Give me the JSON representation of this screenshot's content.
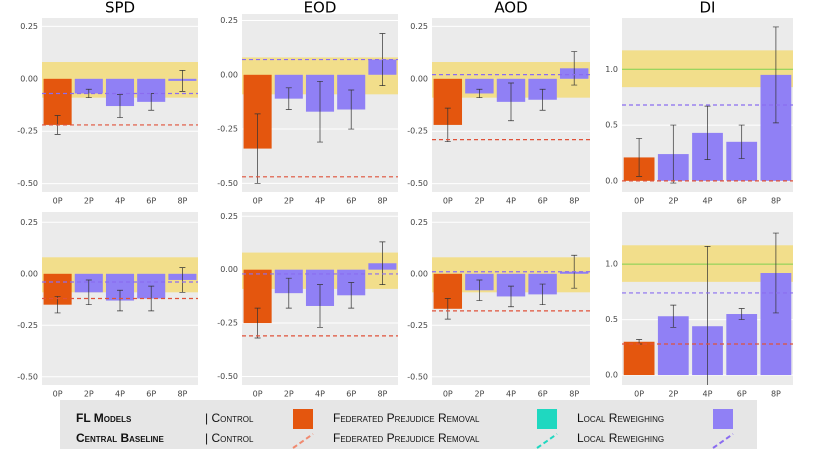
{
  "chart_data": [
    {
      "type": "bar",
      "title": "SPD",
      "categories": [
        "0P",
        "2P",
        "4P",
        "6P",
        "8P"
      ],
      "values": [
        -0.22,
        -0.07,
        -0.13,
        -0.11,
        -0.01
      ],
      "errors": [
        0.045,
        0.02,
        0.055,
        0.04,
        0.05
      ],
      "bar_colors": [
        "#e4560e",
        "#9080f5",
        "#9080f5",
        "#9080f5",
        "#9080f5"
      ],
      "ylim": [
        -0.54,
        0.29
      ],
      "yticks": [
        {
          "value": 0.25,
          "label": "0.25"
        },
        {
          "value": 0,
          "label": "0.00"
        },
        {
          "value": -0.25,
          "label": "-0.25"
        },
        {
          "value": -0.5,
          "label": "-0.50"
        }
      ],
      "band": [
        -0.09,
        0.08
      ],
      "band_color": "#f3dc7a",
      "baselines": [
        {
          "value": -0.22,
          "color": "#e0523a"
        },
        {
          "value": -0.07,
          "color": "#8a6cf0"
        }
      ]
    },
    {
      "type": "bar",
      "title": "EOD",
      "categories": [
        "0P",
        "2P",
        "4P",
        "6P",
        "8P"
      ],
      "values": [
        -0.34,
        -0.11,
        -0.17,
        -0.16,
        0.07
      ],
      "errors": [
        0.16,
        0.05,
        0.14,
        0.09,
        0.12
      ],
      "bar_colors": [
        "#e4560e",
        "#9080f5",
        "#9080f5",
        "#9080f5",
        "#9080f5"
      ],
      "ylim": [
        -0.54,
        0.28
      ],
      "yticks": [
        {
          "value": 0.25,
          "label": "0.25"
        },
        {
          "value": 0,
          "label": "0.00"
        },
        {
          "value": -0.25,
          "label": "-0.25"
        },
        {
          "value": -0.5,
          "label": "-0.50"
        }
      ],
      "band": [
        -0.09,
        0.08
      ],
      "band_color": "#f3dc7a",
      "baselines": [
        {
          "value": -0.47,
          "color": "#e0523a"
        },
        {
          "value": 0.07,
          "color": "#8a6cf0"
        }
      ]
    },
    {
      "type": "bar",
      "title": "AOD",
      "categories": [
        "0P",
        "2P",
        "4P",
        "6P",
        "8P"
      ],
      "values": [
        -0.22,
        -0.07,
        -0.11,
        -0.1,
        0.05
      ],
      "errors": [
        0.08,
        0.02,
        0.09,
        0.05,
        0.08
      ],
      "bar_colors": [
        "#e4560e",
        "#9080f5",
        "#9080f5",
        "#9080f5",
        "#9080f5"
      ],
      "ylim": [
        -0.54,
        0.29
      ],
      "yticks": [
        {
          "value": 0.25,
          "label": "0.25"
        },
        {
          "value": 0,
          "label": "0.00"
        },
        {
          "value": -0.25,
          "label": "-0.25"
        },
        {
          "value": -0.5,
          "label": "-0.50"
        }
      ],
      "band": [
        -0.09,
        0.08
      ],
      "band_color": "#f3dc7a",
      "baselines": [
        {
          "value": -0.29,
          "color": "#e0523a"
        },
        {
          "value": 0.02,
          "color": "#8a6cf0"
        }
      ]
    },
    {
      "type": "bar",
      "title": "DI",
      "categories": [
        "0P",
        "2P",
        "4P",
        "6P",
        "8P"
      ],
      "values": [
        0.21,
        0.24,
        0.43,
        0.35,
        0.95
      ],
      "errors": [
        0.17,
        0.26,
        0.24,
        0.15,
        0.43
      ],
      "bar_colors": [
        "#e4560e",
        "#9080f5",
        "#9080f5",
        "#9080f5",
        "#9080f5"
      ],
      "ylim": [
        -0.1,
        1.46
      ],
      "yticks": [
        {
          "value": 1,
          "label": "1.0"
        },
        {
          "value": 0.5,
          "label": "0.5"
        },
        {
          "value": 0,
          "label": "0.0"
        }
      ],
      "band": [
        0.84,
        1.17
      ],
      "band_color": "#f3dc7a",
      "ref_line": {
        "value": 1,
        "color": "#7fcf4f"
      },
      "baselines": [
        {
          "value": 0,
          "color": "#e0523a"
        },
        {
          "value": 0.68,
          "color": "#8a6cf0"
        }
      ]
    },
    {
      "type": "bar",
      "categories": [
        "0P",
        "2P",
        "4P",
        "6P",
        "8P"
      ],
      "values": [
        -0.15,
        -0.09,
        -0.13,
        -0.12,
        -0.03
      ],
      "errors": [
        0.04,
        0.06,
        0.05,
        0.06,
        0.06
      ],
      "bar_colors": [
        "#e4560e",
        "#9080f5",
        "#9080f5",
        "#9080f5",
        "#9080f5"
      ],
      "ylim": [
        -0.54,
        0.3
      ],
      "yticks": [
        {
          "value": 0.25,
          "label": "0.25"
        },
        {
          "value": 0,
          "label": "0.00"
        },
        {
          "value": -0.25,
          "label": "-0.25"
        },
        {
          "value": -0.5,
          "label": "-0.50"
        }
      ],
      "band": [
        -0.09,
        0.08
      ],
      "band_color": "#f3dc7a",
      "baselines": [
        {
          "value": -0.12,
          "color": "#e0523a"
        },
        {
          "value": -0.04,
          "color": "#8a6cf0"
        }
      ]
    },
    {
      "type": "bar",
      "categories": [
        "0P",
        "2P",
        "4P",
        "6P",
        "8P"
      ],
      "values": [
        -0.25,
        -0.11,
        -0.17,
        -0.12,
        0.03
      ],
      "errors": [
        0.07,
        0.07,
        0.1,
        0.06,
        0.1
      ],
      "bar_colors": [
        "#e4560e",
        "#9080f5",
        "#9080f5",
        "#9080f5",
        "#9080f5"
      ],
      "ylim": [
        -0.54,
        0.27
      ],
      "yticks": [
        {
          "value": 0.25,
          "label": "0.25"
        },
        {
          "value": 0,
          "label": "0.00"
        },
        {
          "value": -0.25,
          "label": "-0.25"
        },
        {
          "value": -0.5,
          "label": "-0.50"
        }
      ],
      "band": [
        -0.09,
        0.08
      ],
      "band_color": "#f3dc7a",
      "baselines": [
        {
          "value": -0.31,
          "color": "#e0523a"
        },
        {
          "value": -0.02,
          "color": "#8a6cf0"
        }
      ]
    },
    {
      "type": "bar",
      "categories": [
        "0P",
        "2P",
        "4P",
        "6P",
        "8P"
      ],
      "values": [
        -0.17,
        -0.08,
        -0.11,
        -0.1,
        0.01
      ],
      "errors": [
        0.05,
        0.05,
        0.05,
        0.05,
        0.08
      ],
      "bar_colors": [
        "#e4560e",
        "#9080f5",
        "#9080f5",
        "#9080f5",
        "#9080f5"
      ],
      "ylim": [
        -0.54,
        0.3
      ],
      "yticks": [
        {
          "value": 0.25,
          "label": "0.25"
        },
        {
          "value": 0,
          "label": "0.00"
        },
        {
          "value": -0.25,
          "label": "-0.25"
        },
        {
          "value": -0.5,
          "label": "-0.50"
        }
      ],
      "band": [
        -0.09,
        0.08
      ],
      "band_color": "#f3dc7a",
      "baselines": [
        {
          "value": -0.18,
          "color": "#e0523a"
        },
        {
          "value": 0.01,
          "color": "#8a6cf0"
        }
      ]
    },
    {
      "type": "bar",
      "categories": [
        "0P",
        "2P",
        "4P",
        "6P",
        "8P"
      ],
      "values": [
        0.3,
        0.53,
        0.44,
        0.55,
        0.92
      ],
      "errors": [
        0.02,
        0.1,
        0.72,
        0.05,
        0.36
      ],
      "bar_colors": [
        "#e4560e",
        "#9080f5",
        "#9080f5",
        "#9080f5",
        "#9080f5"
      ],
      "ylim": [
        -0.09,
        1.47
      ],
      "yticks": [
        {
          "value": 1,
          "label": "1.0"
        },
        {
          "value": 0.5,
          "label": "0.5"
        },
        {
          "value": 0,
          "label": "0.0"
        }
      ],
      "band": [
        0.84,
        1.17
      ],
      "band_color": "#f3dc7a",
      "ref_line": {
        "value": 1,
        "color": "#7fcf4f"
      },
      "baselines": [
        {
          "value": 0.28,
          "color": "#e0523a"
        },
        {
          "value": 0.74,
          "color": "#8a6cf0"
        }
      ]
    }
  ],
  "legend": {
    "rows": [
      {
        "title": "FL Models",
        "items": [
          {
            "label": "| Control",
            "color": "#e4560e"
          },
          {
            "label": "Federated Prejudice Removal",
            "color": "#1fd8c0"
          },
          {
            "label": "Local Reweighing",
            "color": "#9080f5"
          }
        ]
      },
      {
        "title": "Central Baseline",
        "items": [
          {
            "label": "| Control",
            "color": "#f08a70"
          },
          {
            "label": "Federated Prejudice Removal",
            "color": "#1fd8c0"
          },
          {
            "label": "Local Reweighing",
            "color": "#8a6cf0"
          }
        ]
      }
    ]
  }
}
